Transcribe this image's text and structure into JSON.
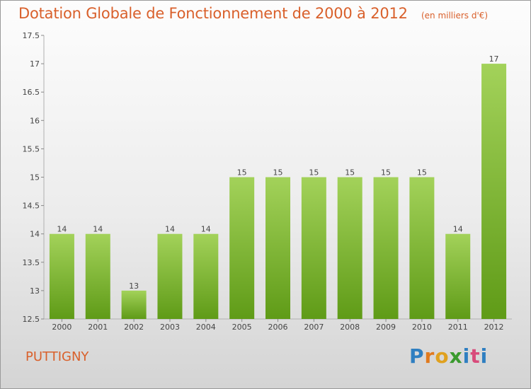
{
  "header": {
    "title": "Dotation Globale de Fonctionnement de 2000 à 2012",
    "subtitle": "(en milliers d'€)"
  },
  "footer": {
    "place": "PUTTIGNY",
    "logo": "Proxiti"
  },
  "colors": {
    "accent": "#d9602b",
    "bar_top": "#a3d25a",
    "bar_bottom": "#5f9b17"
  },
  "chart_data": {
    "type": "bar",
    "categories": [
      "2000",
      "2001",
      "2002",
      "2003",
      "2004",
      "2005",
      "2006",
      "2007",
      "2008",
      "2009",
      "2010",
      "2011",
      "2012"
    ],
    "values": [
      14,
      14,
      13,
      14,
      14,
      15,
      15,
      15,
      15,
      15,
      15,
      14,
      17
    ],
    "data_labels": [
      "14",
      "14",
      "13",
      "14",
      "14",
      "15",
      "15",
      "15",
      "15",
      "15",
      "15",
      "14",
      "17"
    ],
    "ylim": [
      12.5,
      17.5
    ],
    "yticks": [
      12.5,
      13,
      13.5,
      14,
      14.5,
      15,
      15.5,
      16,
      16.5,
      17,
      17.5
    ],
    "ytick_labels": [
      "12.5",
      "13",
      "13.5",
      "14",
      "14.5",
      "15",
      "15.5",
      "16",
      "16.5",
      "17",
      "17.5"
    ],
    "grid": false,
    "legend": "none"
  }
}
